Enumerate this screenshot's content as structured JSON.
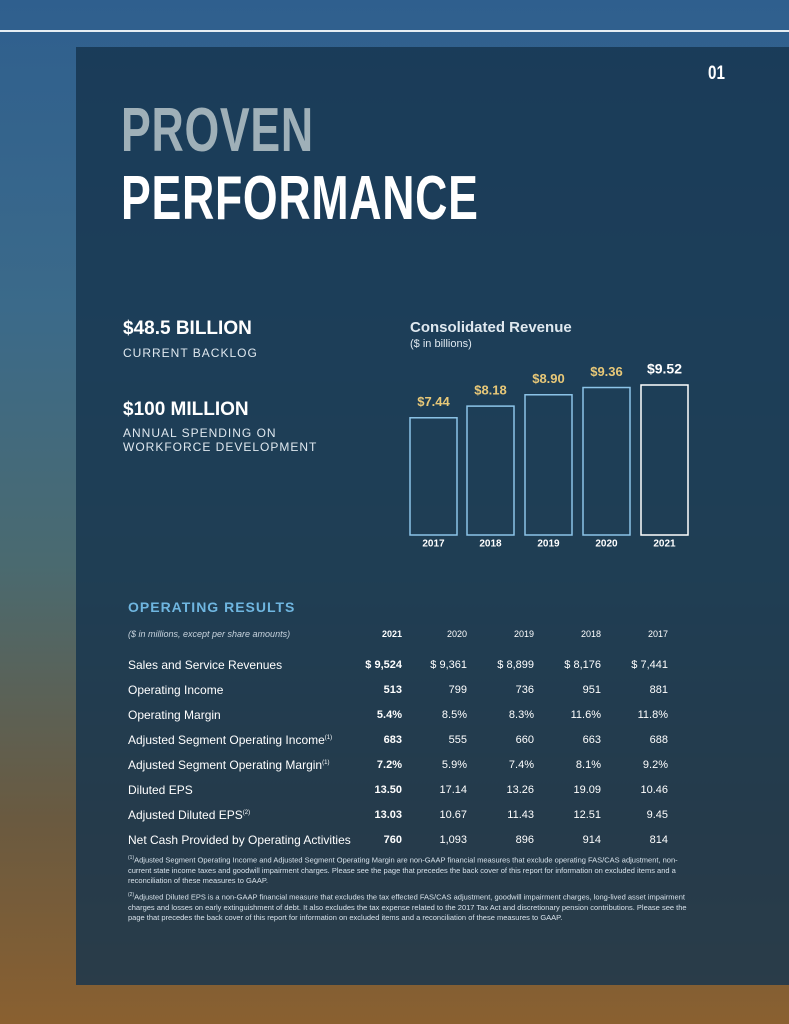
{
  "page_number": "01",
  "title": {
    "line1": "PROVEN",
    "line2": "PERFORMANCE"
  },
  "stats": [
    {
      "value": "$48.5 BILLION",
      "lines": [
        "CURRENT BACKLOG"
      ]
    },
    {
      "value": "$100 MILLION",
      "lines": [
        "ANNUAL SPENDING ON",
        "WORKFORCE DEVELOPMENT"
      ]
    }
  ],
  "chart": {
    "type": "bar",
    "title": "Consolidated Revenue",
    "subtitle": "($ in billions)",
    "categories": [
      "2017",
      "2018",
      "2019",
      "2020",
      "2021"
    ],
    "values": [
      7.44,
      8.18,
      8.9,
      9.36,
      9.52
    ],
    "value_labels": [
      "$7.44",
      "$8.18",
      "$8.90",
      "$9.36",
      "$9.52"
    ]
  },
  "table": {
    "title": "OPERATING RESULTS",
    "note": "($ in millions, except per share amounts)",
    "columns": [
      "2021",
      "2020",
      "2019",
      "2018",
      "2017"
    ],
    "rows": [
      {
        "label": "Sales and Service Revenues",
        "cells": [
          "$ 9,524",
          "$ 9,361",
          "$ 8,899",
          "$ 8,176",
          "$ 7,441"
        ]
      },
      {
        "label": "Operating Income",
        "cells": [
          "513",
          "799",
          "736",
          "951",
          "881"
        ]
      },
      {
        "label": "Operating Margin",
        "cells": [
          "5.4%",
          "8.5%",
          "8.3%",
          "11.6%",
          "11.8%"
        ]
      },
      {
        "label": "Adjusted Segment Operating Income",
        "sup": "(1)",
        "cells": [
          "683",
          "555",
          "660",
          "663",
          "688"
        ]
      },
      {
        "label": "Adjusted Segment Operating Margin",
        "sup": "(1)",
        "cells": [
          "7.2%",
          "5.9%",
          "7.4%",
          "8.1%",
          "9.2%"
        ]
      },
      {
        "label": "Diluted EPS",
        "cells": [
          "13.50",
          "17.14",
          "13.26",
          "19.09",
          "10.46"
        ]
      },
      {
        "label": "Adjusted Diluted EPS",
        "sup": "(2)",
        "cells": [
          "13.03",
          "10.67",
          "11.43",
          "12.51",
          "9.45"
        ]
      },
      {
        "label": "Net Cash Provided by Operating Activities",
        "cells": [
          "760",
          "1,093",
          "896",
          "914",
          "814"
        ]
      }
    ]
  },
  "footnotes": [
    {
      "marker": "(1)",
      "text": "Adjusted Segment Operating Income and Adjusted Segment Operating Margin are non-GAAP financial measures that exclude operating FAS/CAS adjustment, non-current state income taxes and goodwill impairment charges. Please see the page that precedes the back cover of this report for information on excluded items and a reconciliation of these measures to GAAP."
    },
    {
      "marker": "(2)",
      "text": "Adjusted Diluted EPS is a non-GAAP financial measure that excludes the tax effected FAS/CAS adjustment, goodwill impairment charges, long-lived asset impairment charges and losses on early extinguishment of debt. It also excludes the tax expense related to the 2017 Tax Act and discretionary pension contributions. Please see the page that precedes the back cover of this report for information on excluded items and a reconciliation of these measures to GAAP."
    }
  ]
}
